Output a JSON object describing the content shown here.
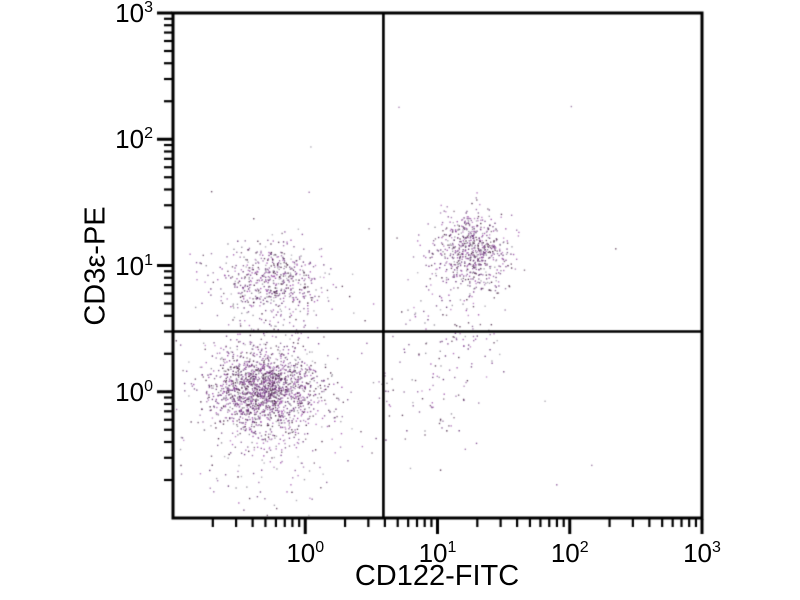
{
  "figure": {
    "background_color": "#ffffff",
    "axis_color": "#000000"
  },
  "chart_data": {
    "type": "scatter",
    "title": "",
    "xlabel": "CD122-FITC",
    "ylabel": "CD3ε-PE",
    "x_scale": "log",
    "y_scale": "log",
    "xlim": [
      0.1,
      1000
    ],
    "ylim": [
      0.1,
      1000
    ],
    "grid": false,
    "legend": "none",
    "x_ticks": [
      {
        "label": "10^0",
        "exponent": 0
      },
      {
        "label": "10^1",
        "exponent": 1
      },
      {
        "label": "10^2",
        "exponent": 2
      },
      {
        "label": "10^3",
        "exponent": 3
      }
    ],
    "y_ticks": [
      {
        "label": "10^0",
        "exponent": 0
      },
      {
        "label": "10^1",
        "exponent": 1
      },
      {
        "label": "10^2",
        "exponent": 2
      },
      {
        "label": "10^3",
        "exponent": 3
      }
    ],
    "minor_ticks_per_decade": [
      2,
      3,
      4,
      5,
      6,
      7,
      8,
      9
    ],
    "quadrant_gates": {
      "x": 3.9,
      "y": 3.0
    },
    "point_colors": {
      "core_purples": [
        "#9a4aa8",
        "#7b3f8c",
        "#5e2d6e",
        "#43203f"
      ],
      "sparse_gray": "#8e8896",
      "gray_fraction": 0.18
    },
    "seed": 13,
    "clusters": [
      {
        "name": "CD3-CD122- double-negative core",
        "center": [
          0.48,
          1.05
        ],
        "sigma_decades": [
          0.2,
          0.16
        ],
        "count": 1500
      },
      {
        "name": "double-negative halo/tail",
        "center": [
          0.55,
          0.7
        ],
        "sigma_decades": [
          0.3,
          0.32
        ],
        "count": 450
      },
      {
        "name": "CD3+CD122- T cells",
        "center": [
          0.55,
          7.5
        ],
        "sigma_decades": [
          0.21,
          0.16
        ],
        "count": 600
      },
      {
        "name": "CD3+CD122+ double-positive",
        "center": [
          18,
          12.5
        ],
        "sigma_decades": [
          0.14,
          0.16
        ],
        "count": 650
      },
      {
        "name": "double-positive lower tail",
        "center": [
          15,
          4.5
        ],
        "sigma_decades": [
          0.18,
          0.28
        ],
        "count": 110
      },
      {
        "name": "CD122+CD3- sparse",
        "center": [
          8,
          1.3
        ],
        "sigma_decades": [
          0.22,
          0.3
        ],
        "count": 100
      }
    ],
    "background_points": {
      "count": 20
    }
  }
}
